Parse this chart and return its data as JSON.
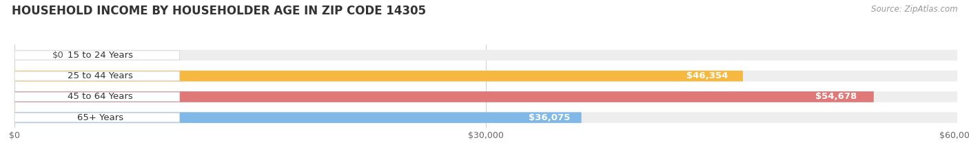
{
  "title": "HOUSEHOLD INCOME BY HOUSEHOLDER AGE IN ZIP CODE 14305",
  "source": "Source: ZipAtlas.com",
  "categories": [
    "15 to 24 Years",
    "25 to 44 Years",
    "45 to 64 Years",
    "65+ Years"
  ],
  "values": [
    0,
    46354,
    54678,
    36075
  ],
  "bar_colors": [
    "#f2a0b8",
    "#f5b942",
    "#e07878",
    "#80b8e8"
  ],
  "bar_bg_color": "#eeeeee",
  "background_color": "#ffffff",
  "xlim": [
    0,
    60000
  ],
  "xticks": [
    0,
    30000,
    60000
  ],
  "xtick_labels": [
    "$0",
    "$30,000",
    "$60,000"
  ],
  "value_labels": [
    "$0",
    "$46,354",
    "$54,678",
    "$36,075"
  ],
  "title_fontsize": 12,
  "label_fontsize": 9.5,
  "tick_fontsize": 9,
  "source_fontsize": 8.5
}
